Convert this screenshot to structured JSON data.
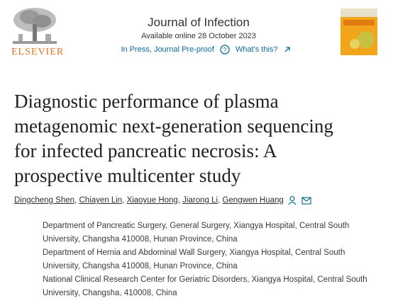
{
  "header": {
    "publisher": "ELSEVIER",
    "journal": "Journal of Infection",
    "available": "Available online 28 October 2023",
    "status": "In Press, Journal Pre-proof",
    "whats_this": "What's this?"
  },
  "article": {
    "title_lines": [
      "Diagnostic performance of plasma",
      "metagenomic next-generation sequencing",
      "for infected pancreatic necrosis: A",
      "prospective multicenter study"
    ],
    "authors": [
      "Dingcheng Shen",
      "Chiayen Lin",
      "Xiaoyue Hong",
      "Jiarong Li",
      "Gengwen Huang"
    ],
    "affiliations": [
      "Department of Pancreatic Surgery, General Surgery, Xiangya Hospital, Central South University, Changsha 410008, Hunan Province, China",
      "Department of Hernia and Abdominal Wall Surgery, Xiangya Hospital, Central South University, Changsha 410008, Hunan Province, China",
      "National Clinical Research Center for Geriatric Disorders, Xiangya Hospital, Central South University, Changsha, 410008, China"
    ]
  }
}
